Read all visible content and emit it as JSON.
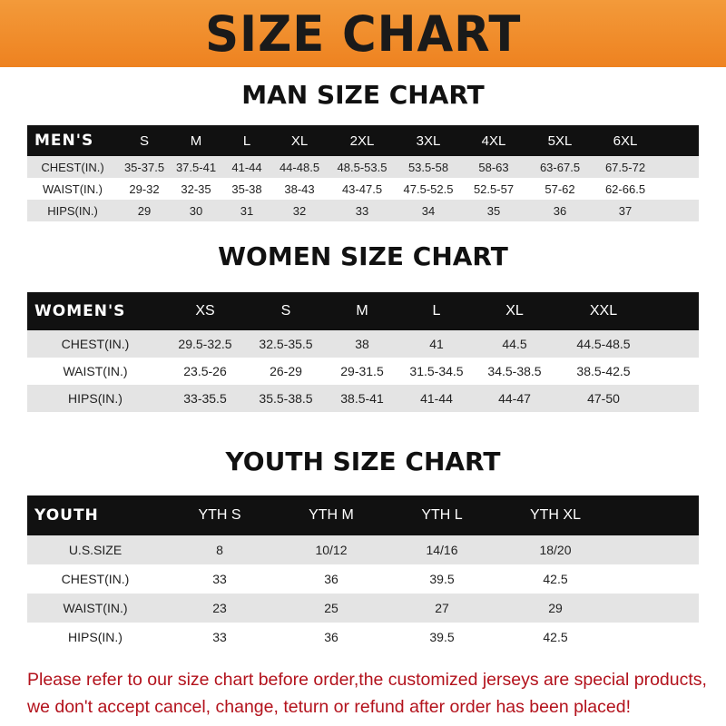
{
  "banner_title": "SIZE CHART",
  "colors": {
    "banner": "#ee8220",
    "header_row": "#111111",
    "note_text": "#b3121c"
  },
  "men": {
    "title": "MAN SIZE CHART",
    "header": [
      "MEN'S",
      "S",
      "M",
      "L",
      "XL",
      "2XL",
      "3XL",
      "4XL",
      "5XL",
      "6XL"
    ],
    "rows": [
      [
        "CHEST(IN.)",
        "35-37.5",
        "37.5-41",
        "41-44",
        "44-48.5",
        "48.5-53.5",
        "53.5-58",
        "58-63",
        "63-67.5",
        "67.5-72"
      ],
      [
        "WAIST(IN.)",
        "29-32",
        "32-35",
        "35-38",
        "38-43",
        "43-47.5",
        "47.5-52.5",
        "52.5-57",
        "57-62",
        "62-66.5"
      ],
      [
        "HIPS(IN.)",
        "29",
        "30",
        "31",
        "32",
        "33",
        "34",
        "35",
        "36",
        "37"
      ]
    ]
  },
  "women": {
    "title": "WOMEN SIZE CHART",
    "header": [
      "WOMEN'S",
      "XS",
      "S",
      "M",
      "L",
      "XL",
      "XXL"
    ],
    "rows": [
      [
        "CHEST(IN.)",
        "29.5-32.5",
        "32.5-35.5",
        "38",
        "41",
        "44.5",
        "44.5-48.5"
      ],
      [
        "WAIST(IN.)",
        "23.5-26",
        "26-29",
        "29-31.5",
        "31.5-34.5",
        "34.5-38.5",
        "38.5-42.5"
      ],
      [
        "HIPS(IN.)",
        "33-35.5",
        "35.5-38.5",
        "38.5-41",
        "41-44",
        "44-47",
        "47-50"
      ]
    ]
  },
  "youth": {
    "title": "YOUTH SIZE CHART",
    "header": [
      "YOUTH",
      "YTH S",
      "YTH M",
      "YTH L",
      "YTH XL"
    ],
    "rows": [
      [
        "U.S.SIZE",
        "8",
        "10/12",
        "14/16",
        "18/20"
      ],
      [
        "CHEST(IN.)",
        "33",
        "36",
        "39.5",
        "42.5"
      ],
      [
        "WAIST(IN.)",
        "23",
        "25",
        "27",
        "29"
      ],
      [
        "HIPS(IN.)",
        "33",
        "36",
        "39.5",
        "42.5"
      ]
    ]
  },
  "note": {
    "line1": "Please refer to our size chart before order,the customized jerseys are special products,",
    "line2": "we don't accept cancel, change, teturn or refund after order has been placed!"
  }
}
